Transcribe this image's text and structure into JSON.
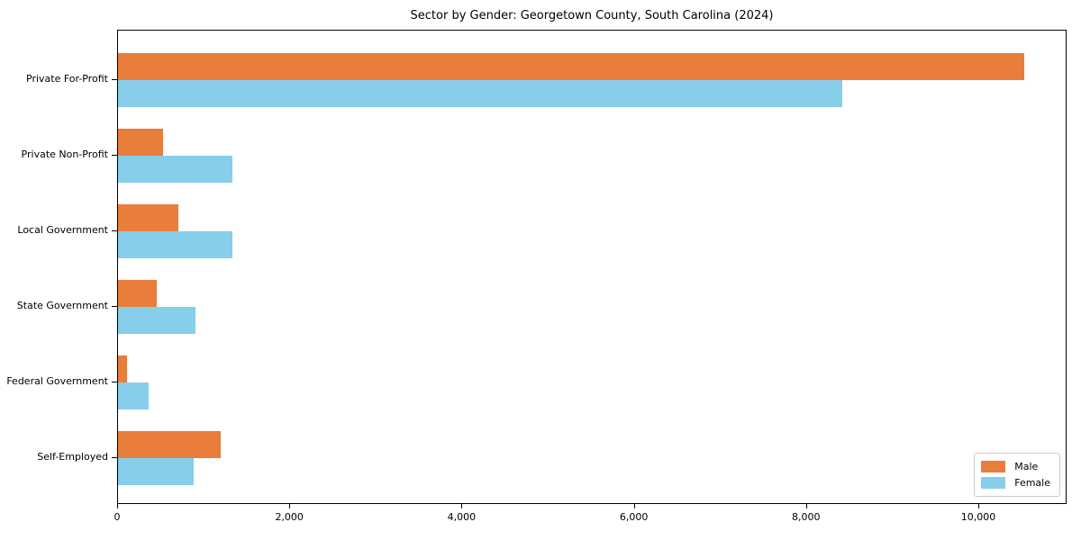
{
  "chart_data": {
    "type": "bar",
    "orientation": "horizontal",
    "title": "Sector by Gender: Georgetown County, South Carolina (2024)",
    "categories": [
      "Private For-Profit",
      "Private Non-Profit",
      "Local Government",
      "State Government",
      "Federal Government",
      "Self-Employed"
    ],
    "series": [
      {
        "name": "Male",
        "color": "#E87D3C",
        "values": [
          10520,
          520,
          705,
          445,
          100,
          1190
        ]
      },
      {
        "name": "Female",
        "color": "#87CEEB",
        "values": [
          8410,
          1330,
          1330,
          895,
          350,
          880
        ]
      }
    ],
    "xlabel": "",
    "ylabel": "",
    "xlim": [
      0,
      11025
    ],
    "xticks": [
      0,
      2000,
      4000,
      6000,
      8000,
      10000
    ],
    "xtick_labels": [
      "0",
      "2,000",
      "4,000",
      "6,000",
      "8,000",
      "10,000"
    ],
    "grid": false,
    "legend": {
      "position": "lower right",
      "entries": [
        "Male",
        "Female"
      ]
    },
    "colors": {
      "background": "#ffffff",
      "spine": "#000000",
      "legend_border": "#cccccc",
      "text": "#000000"
    }
  }
}
